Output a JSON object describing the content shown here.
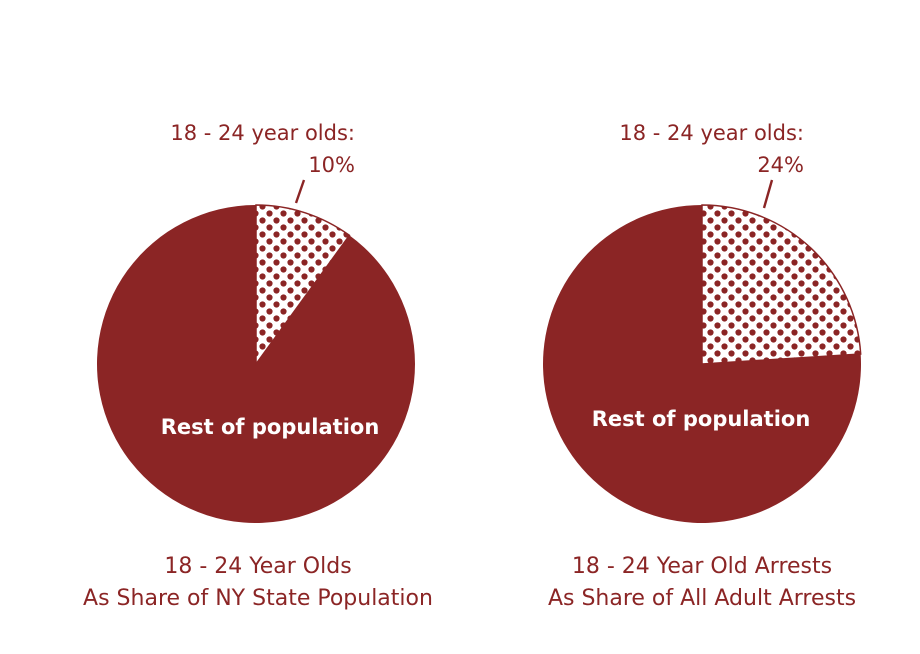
{
  "colors": {
    "accent": "#8b2525",
    "background": "#ffffff",
    "inside_text": "#ffffff"
  },
  "chart_data": [
    {
      "type": "pie",
      "slices": [
        {
          "label": "18 - 24 year olds",
          "value": 10,
          "pattern": "dotted"
        },
        {
          "label": "Rest of population",
          "value": 90,
          "pattern": "solid"
        }
      ],
      "callout": {
        "title": "18 - 24 year olds:",
        "value": "10%"
      },
      "inside_label": "Rest of population",
      "caption": [
        "18 - 24 Year Olds",
        "As Share of NY State Population"
      ]
    },
    {
      "type": "pie",
      "slices": [
        {
          "label": "18 - 24 year olds",
          "value": 24,
          "pattern": "dotted"
        },
        {
          "label": "Rest of population",
          "value": 76,
          "pattern": "solid"
        }
      ],
      "callout": {
        "title": "18 - 24 year olds:",
        "value": "24%"
      },
      "inside_label": "Rest of population",
      "caption": [
        "18 - 24 Year Old Arrests",
        "As Share of All Adult Arrests"
      ]
    }
  ]
}
